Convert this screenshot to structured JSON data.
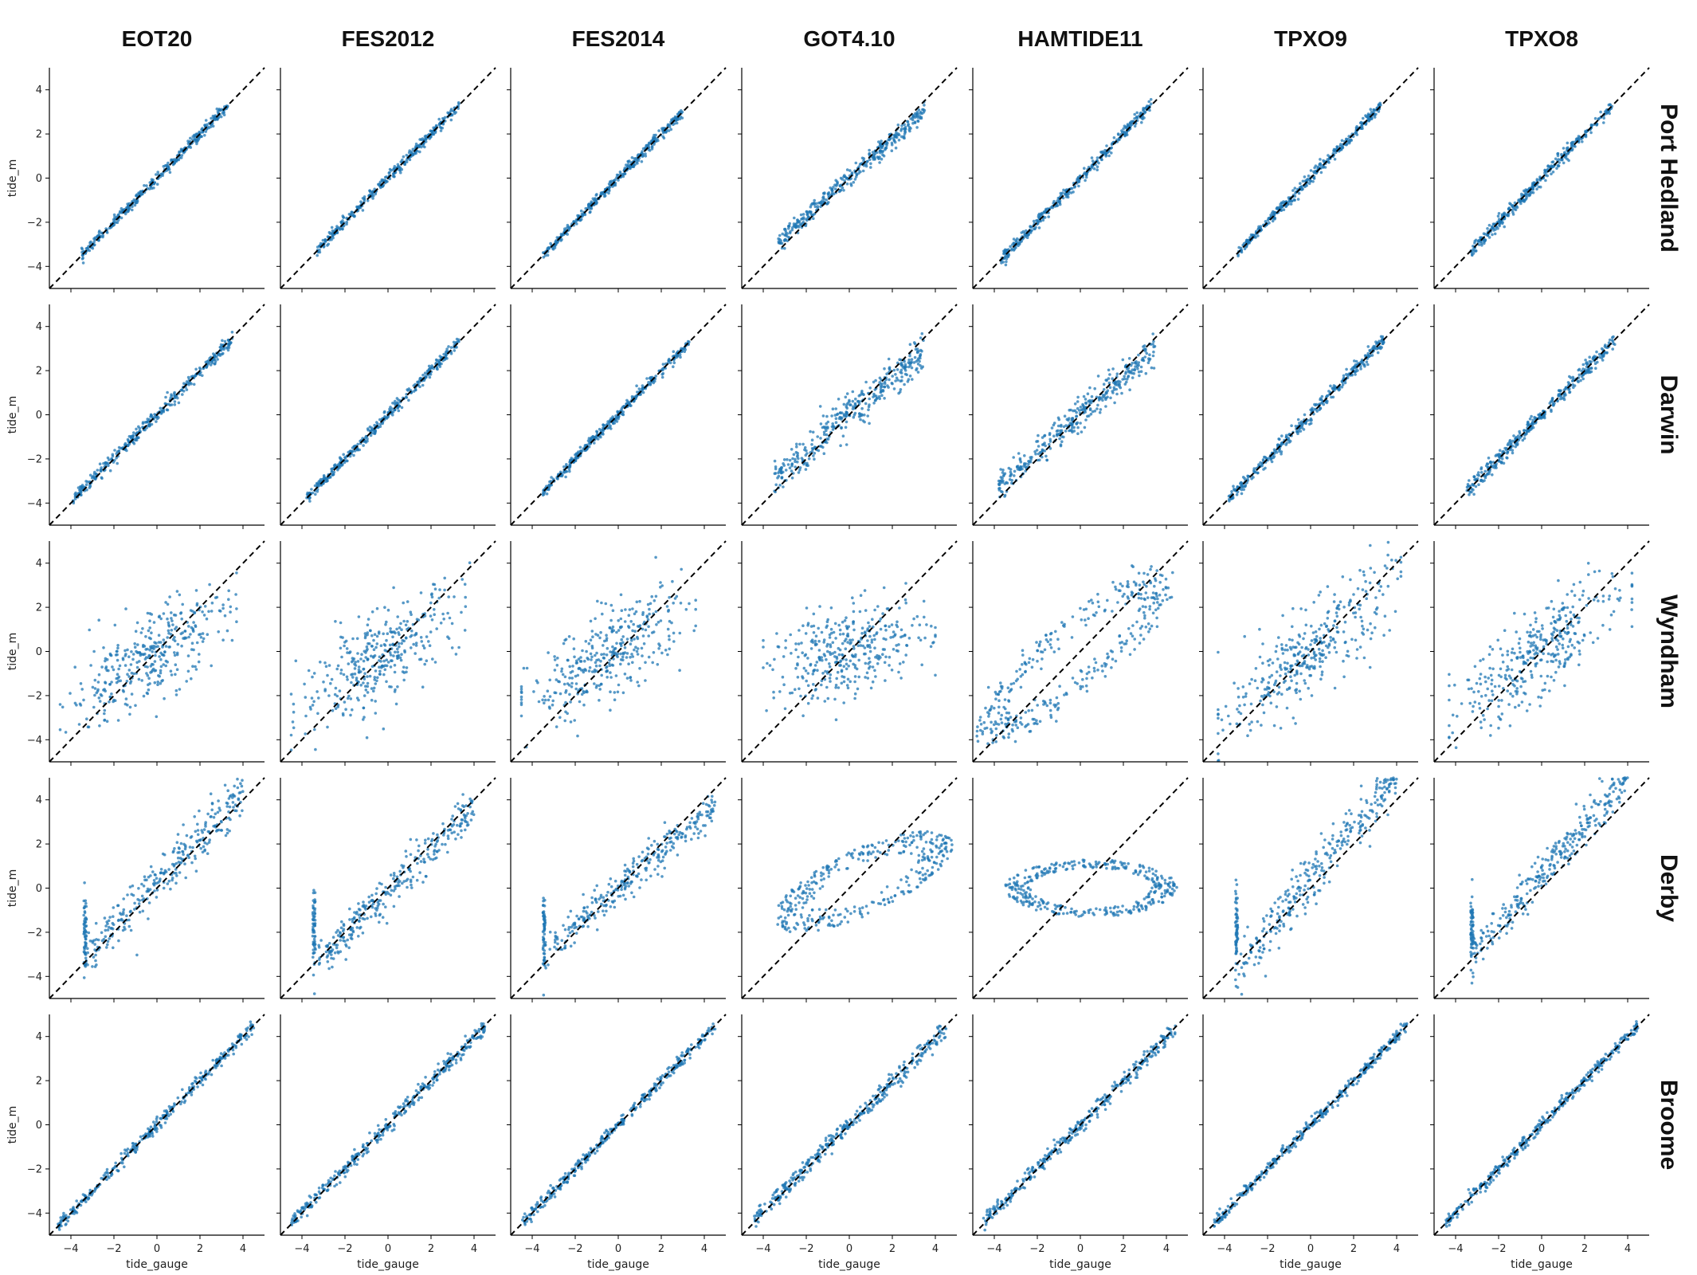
{
  "chart_data": {
    "type": "scatter",
    "grid": false,
    "legend": "none",
    "xlabel": "tide_gauge",
    "ylabel": "tide_m",
    "xlim": [
      -5,
      5
    ],
    "ylim": [
      -5,
      5
    ],
    "xticks": [
      -4,
      -2,
      0,
      2,
      4
    ],
    "yticks": [
      -4,
      -2,
      0,
      2,
      4
    ],
    "xtick_labels": [
      "−4",
      "−2",
      "0",
      "2",
      "4"
    ],
    "ytick_labels": [
      "−4",
      "−2",
      "0",
      "2",
      "4"
    ],
    "reference_line": "1:1 dashed",
    "point_color": "#1f77b4",
    "line_color": "#000000",
    "models": [
      "EOT20",
      "FES2012",
      "FES2014",
      "GOT4.10",
      "HAMTIDE11",
      "TPXO9",
      "TPXO8"
    ],
    "sites": [
      "Port Hedland",
      "Darwin",
      "Wyndham",
      "Derby",
      "Broome"
    ],
    "panels": [
      [
        {
          "model": "EOT20",
          "site": "Port Hedland",
          "shape": "linear",
          "x_range": [
            -3.5,
            3.3
          ],
          "slope": 1.0,
          "intercept": 0.0,
          "spread": 0.12
        },
        {
          "model": "FES2012",
          "site": "Port Hedland",
          "shape": "linear",
          "x_range": [
            -3.3,
            3.3
          ],
          "slope": 1.0,
          "intercept": 0.0,
          "spread": 0.12
        },
        {
          "model": "FES2014",
          "site": "Port Hedland",
          "shape": "linear",
          "x_range": [
            -3.5,
            3.0
          ],
          "slope": 1.0,
          "intercept": 0.0,
          "spread": 0.12
        },
        {
          "model": "GOT4.10",
          "site": "Port Hedland",
          "shape": "linear",
          "x_range": [
            -3.3,
            3.5
          ],
          "slope": 0.87,
          "intercept": 0.0,
          "spread": 0.2
        },
        {
          "model": "HAMTIDE11",
          "site": "Port Hedland",
          "shape": "linear",
          "x_range": [
            -3.7,
            3.3
          ],
          "slope": 1.0,
          "intercept": 0.0,
          "spread": 0.14
        },
        {
          "model": "TPXO9",
          "site": "Port Hedland",
          "shape": "linear",
          "x_range": [
            -3.4,
            3.3
          ],
          "slope": 1.0,
          "intercept": 0.0,
          "spread": 0.13
        },
        {
          "model": "TPXO8",
          "site": "Port Hedland",
          "shape": "linear",
          "x_range": [
            -3.3,
            3.3
          ],
          "slope": 1.0,
          "intercept": 0.0,
          "spread": 0.14
        }
      ],
      [
        {
          "model": "EOT20",
          "site": "Darwin",
          "shape": "linear",
          "x_range": [
            -3.9,
            3.5
          ],
          "slope": 0.98,
          "intercept": 0.0,
          "spread": 0.15
        },
        {
          "model": "FES2012",
          "site": "Darwin",
          "shape": "linear",
          "x_range": [
            -3.8,
            3.3
          ],
          "slope": 1.0,
          "intercept": 0.0,
          "spread": 0.13
        },
        {
          "model": "FES2014",
          "site": "Darwin",
          "shape": "linear",
          "x_range": [
            -3.5,
            3.3
          ],
          "slope": 1.0,
          "intercept": 0.0,
          "spread": 0.12
        },
        {
          "model": "GOT4.10",
          "site": "Darwin",
          "shape": "linear",
          "x_range": [
            -3.5,
            3.5
          ],
          "slope": 0.82,
          "intercept": 0.0,
          "spread": 0.45
        },
        {
          "model": "HAMTIDE11",
          "site": "Darwin",
          "shape": "linear",
          "x_range": [
            -3.8,
            3.5
          ],
          "slope": 0.85,
          "intercept": 0.0,
          "spread": 0.35
        },
        {
          "model": "TPXO9",
          "site": "Darwin",
          "shape": "linear",
          "x_range": [
            -3.8,
            3.4
          ],
          "slope": 1.0,
          "intercept": 0.0,
          "spread": 0.15
        },
        {
          "model": "TPXO8",
          "site": "Darwin",
          "shape": "linear",
          "x_range": [
            -3.5,
            3.4
          ],
          "slope": 1.0,
          "intercept": 0.0,
          "spread": 0.18
        }
      ],
      [
        {
          "model": "EOT20",
          "site": "Wyndham",
          "shape": "cloud",
          "x_range": [
            -4.5,
            3.7
          ],
          "slope": 0.6,
          "intercept": 0.0,
          "spread": 1.0
        },
        {
          "model": "FES2012",
          "site": "Wyndham",
          "shape": "cloud",
          "x_range": [
            -4.5,
            3.8
          ],
          "slope": 0.6,
          "intercept": 0.0,
          "spread": 1.0
        },
        {
          "model": "FES2014",
          "site": "Wyndham",
          "shape": "cloud",
          "x_range": [
            -4.5,
            3.6
          ],
          "slope": 0.55,
          "intercept": 0.0,
          "spread": 1.0
        },
        {
          "model": "GOT4.10",
          "site": "Wyndham",
          "shape": "cloud",
          "x_range": [
            -4.0,
            4.0
          ],
          "slope": 0.25,
          "intercept": 0.0,
          "spread": 1.0
        },
        {
          "model": "HAMTIDE11",
          "site": "Wyndham",
          "shape": "ring",
          "x_range": [
            -4.5,
            4.0
          ],
          "slope": 0.75,
          "intercept": 0.0,
          "spread": 1.2
        },
        {
          "model": "TPXO9",
          "site": "Wyndham",
          "shape": "cloud",
          "x_range": [
            -4.3,
            4.2
          ],
          "slope": 0.75,
          "intercept": 0.0,
          "spread": 1.0
        },
        {
          "model": "TPXO8",
          "site": "Wyndham",
          "shape": "cloud",
          "x_range": [
            -4.3,
            4.2
          ],
          "slope": 0.7,
          "intercept": 0.0,
          "spread": 1.0
        }
      ],
      [
        {
          "model": "EOT20",
          "site": "Derby",
          "shape": "clipped",
          "x_range": [
            -3.4,
            4.0
          ],
          "slope": 1.0,
          "intercept": 0.3,
          "spread": 0.5
        },
        {
          "model": "FES2012",
          "site": "Derby",
          "shape": "clipped",
          "x_range": [
            -3.5,
            4.0
          ],
          "slope": 0.95,
          "intercept": -0.2,
          "spread": 0.45
        },
        {
          "model": "FES2014",
          "site": "Derby",
          "shape": "clipped",
          "x_range": [
            -3.5,
            4.5
          ],
          "slope": 0.85,
          "intercept": 0.0,
          "spread": 0.4
        },
        {
          "model": "GOT4.10",
          "site": "Derby",
          "shape": "ellipse",
          "x_range": [
            -3.5,
            4.8
          ],
          "slope": 0.4,
          "intercept": 0.0,
          "spread": 1.6
        },
        {
          "model": "HAMTIDE11",
          "site": "Derby",
          "shape": "flat-loop",
          "x_range": [
            -3.5,
            4.5
          ],
          "slope": 0.0,
          "intercept": 0.0,
          "spread": 0.8
        },
        {
          "model": "TPXO9",
          "site": "Derby",
          "shape": "clipped",
          "x_range": [
            -3.5,
            4.0
          ],
          "slope": 1.2,
          "intercept": 0.4,
          "spread": 0.6
        },
        {
          "model": "TPXO8",
          "site": "Derby",
          "shape": "clipped",
          "x_range": [
            -3.3,
            4.0
          ],
          "slope": 1.1,
          "intercept": 0.6,
          "spread": 0.5
        }
      ],
      [
        {
          "model": "EOT20",
          "site": "Broome",
          "shape": "linear",
          "x_range": [
            -4.6,
            4.5
          ],
          "slope": 1.0,
          "intercept": 0.0,
          "spread": 0.14
        },
        {
          "model": "FES2012",
          "site": "Broome",
          "shape": "linear",
          "x_range": [
            -4.5,
            4.5
          ],
          "slope": 0.98,
          "intercept": 0.0,
          "spread": 0.18
        },
        {
          "model": "FES2014",
          "site": "Broome",
          "shape": "linear",
          "x_range": [
            -4.5,
            4.5
          ],
          "slope": 1.0,
          "intercept": 0.0,
          "spread": 0.14
        },
        {
          "model": "GOT4.10",
          "site": "Broome",
          "shape": "linear",
          "x_range": [
            -4.5,
            4.5
          ],
          "slope": 0.97,
          "intercept": 0.0,
          "spread": 0.2
        },
        {
          "model": "HAMTIDE11",
          "site": "Broome",
          "shape": "linear",
          "x_range": [
            -4.5,
            4.5
          ],
          "slope": 0.97,
          "intercept": 0.0,
          "spread": 0.18
        },
        {
          "model": "TPXO9",
          "site": "Broome",
          "shape": "linear",
          "x_range": [
            -4.5,
            4.5
          ],
          "slope": 1.0,
          "intercept": 0.0,
          "spread": 0.14
        },
        {
          "model": "TPXO8",
          "site": "Broome",
          "shape": "linear",
          "x_range": [
            -4.5,
            4.5
          ],
          "slope": 1.0,
          "intercept": 0.0,
          "spread": 0.14
        }
      ]
    ]
  }
}
